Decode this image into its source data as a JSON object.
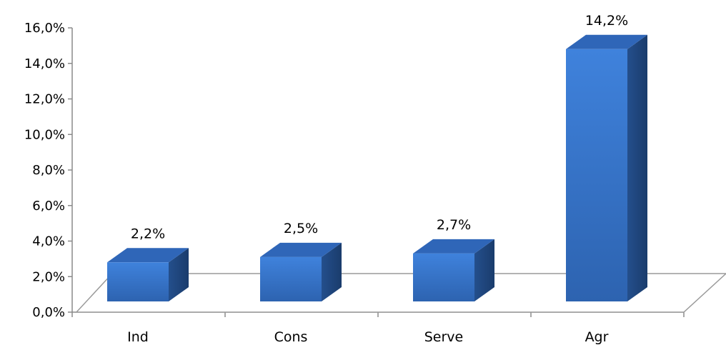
{
  "chart_data": {
    "type": "bar",
    "style": "3d-column",
    "categories": [
      "Ind",
      "Cons",
      "Serve",
      "Agr"
    ],
    "values": [
      2.2,
      2.5,
      2.7,
      14.2
    ],
    "data_labels": [
      "2,2%",
      "2,5%",
      "2,7%",
      "14,2%"
    ],
    "title": "",
    "xlabel": "",
    "ylabel": "",
    "ylim": [
      0,
      16
    ],
    "y_ticks": [
      0,
      2,
      4,
      6,
      8,
      10,
      12,
      14,
      16
    ],
    "y_tick_labels": [
      "0,0%",
      "2,0%",
      "4,0%",
      "6,0%",
      "8,0%",
      "10,0%",
      "12,0%",
      "14,0%",
      "16,0%"
    ],
    "grid": false,
    "legend": "none",
    "colors": {
      "bar_front": "#3a7bd5",
      "bar_top": "#2f66b8",
      "bar_side": "#1f4a85",
      "axis": "#8a8a8a",
      "floor": "#9a9a9a"
    }
  }
}
